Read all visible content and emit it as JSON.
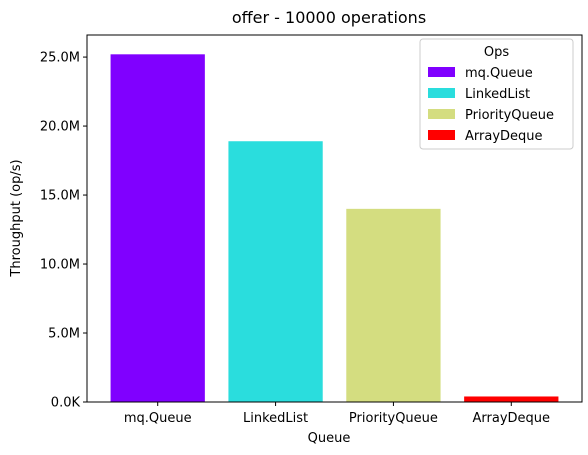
{
  "chart_data": {
    "type": "bar",
    "title": "offer - 10000 operations",
    "xlabel": "Queue",
    "ylabel": "Throughput (op/s)",
    "categories": [
      "mq.Queue",
      "LinkedList",
      "PriorityQueue",
      "ArrayDeque"
    ],
    "values": [
      25200000,
      18900000,
      14000000,
      400000
    ],
    "colors": [
      "#8000ff",
      "#2adddd",
      "#d4dd80",
      "#ff0000"
    ],
    "ylim": [
      0,
      26600000
    ],
    "yticks": [
      0,
      5000000,
      10000000,
      15000000,
      20000000,
      25000000
    ],
    "ytick_labels": [
      "0.0K",
      "5.0M",
      "10.0M",
      "15.0M",
      "20.0M",
      "25.0M"
    ],
    "grid": false,
    "legend": {
      "title": "Ops",
      "placement": "top-right",
      "entries": [
        "mq.Queue",
        "LinkedList",
        "PriorityQueue",
        "ArrayDeque"
      ]
    }
  }
}
